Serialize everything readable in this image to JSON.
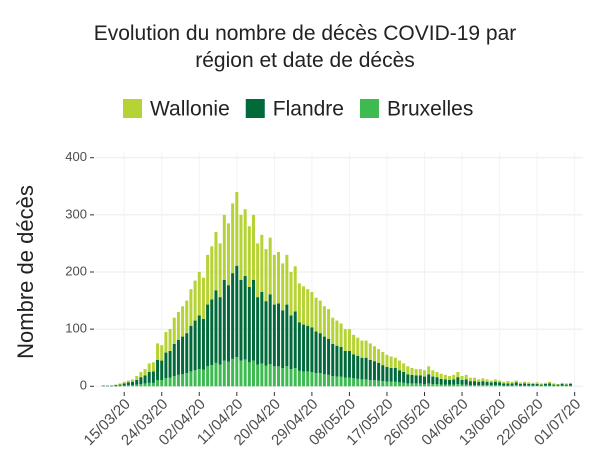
{
  "chart_data": {
    "type": "bar",
    "stacked": true,
    "title": "Evolution du nombre de décès COVID-19 par\nrégion et date de décès",
    "y_label": "Nombre de décès",
    "x": [
      "10/03/20",
      "11/03/20",
      "12/03/20",
      "13/03/20",
      "14/03/20",
      "15/03/20",
      "16/03/20",
      "17/03/20",
      "18/03/20",
      "19/03/20",
      "20/03/20",
      "21/03/20",
      "22/03/20",
      "23/03/20",
      "24/03/20",
      "25/03/20",
      "26/03/20",
      "27/03/20",
      "28/03/20",
      "29/03/20",
      "30/03/20",
      "31/03/20",
      "01/04/20",
      "02/04/20",
      "03/04/20",
      "04/04/20",
      "05/04/20",
      "06/04/20",
      "07/04/20",
      "08/04/20",
      "09/04/20",
      "10/04/20",
      "11/04/20",
      "12/04/20",
      "13/04/20",
      "14/04/20",
      "15/04/20",
      "16/04/20",
      "17/04/20",
      "18/04/20",
      "19/04/20",
      "20/04/20",
      "21/04/20",
      "22/04/20",
      "23/04/20",
      "24/04/20",
      "25/04/20",
      "26/04/20",
      "27/04/20",
      "28/04/20",
      "29/04/20",
      "30/04/20",
      "01/05/20",
      "02/05/20",
      "03/05/20",
      "04/05/20",
      "05/05/20",
      "06/05/20",
      "07/05/20",
      "08/05/20",
      "09/05/20",
      "10/05/20",
      "11/05/20",
      "12/05/20",
      "13/05/20",
      "14/05/20",
      "15/05/20",
      "16/05/20",
      "17/05/20",
      "18/05/20",
      "19/05/20",
      "20/05/20",
      "21/05/20",
      "22/05/20",
      "23/05/20",
      "24/05/20",
      "25/05/20",
      "26/05/20",
      "27/05/20",
      "28/05/20",
      "29/05/20",
      "30/05/20",
      "31/05/20",
      "01/06/20",
      "02/06/20",
      "03/06/20",
      "04/06/20",
      "05/06/20",
      "06/06/20",
      "07/06/20",
      "08/06/20",
      "09/06/20",
      "10/06/20",
      "11/06/20",
      "12/06/20",
      "13/06/20",
      "14/06/20",
      "15/06/20",
      "16/06/20",
      "17/06/20",
      "18/06/20",
      "19/06/20",
      "20/06/20",
      "21/06/20",
      "22/06/20",
      "23/06/20",
      "24/06/20",
      "25/06/20",
      "26/06/20",
      "27/06/20",
      "28/06/20",
      "29/06/20",
      "30/06/20"
    ],
    "series": [
      {
        "name": "Wallonie",
        "color": "#b5d334",
        "values": [
          1,
          0,
          1,
          1,
          2,
          3,
          3,
          4,
          7,
          9,
          11,
          15,
          16,
          29,
          27,
          36,
          38,
          46,
          49,
          53,
          57,
          64,
          70,
          76,
          72,
          87,
          93,
          102,
          94,
          114,
          108,
          122,
          129,
          114,
          117,
          106,
          114,
          94,
          100,
          91,
          99,
          87,
          90,
          82,
          87,
          76,
          79,
          68,
          67,
          64,
          62,
          59,
          57,
          53,
          52,
          46,
          44,
          41,
          38,
          38,
          34,
          32,
          30,
          30,
          29,
          26,
          24,
          23,
          21,
          20,
          18,
          17,
          15,
          14,
          12,
          11,
          11,
          11,
          14,
          11,
          9,
          9,
          8,
          7,
          8,
          9,
          7,
          8,
          6,
          6,
          4,
          5,
          4,
          3,
          4,
          3,
          3,
          4,
          3,
          3,
          3,
          3,
          3,
          2,
          3,
          2,
          2,
          3,
          2,
          1,
          2,
          2,
          2
        ]
      },
      {
        "name": "Flandre",
        "color": "#006a3a",
        "values": [
          1,
          1,
          1,
          2,
          2,
          4,
          5,
          6,
          8,
          12,
          14,
          19,
          20,
          35,
          34,
          45,
          47,
          56,
          61,
          66,
          70,
          80,
          87,
          94,
          89,
          108,
          115,
          127,
          118,
          141,
          134,
          150,
          160,
          141,
          146,
          132,
          141,
          118,
          125,
          113,
          122,
          108,
          110,
          101,
          108,
          94,
          99,
          85,
          82,
          80,
          78,
          73,
          70,
          66,
          63,
          56,
          54,
          52,
          47,
          47,
          42,
          40,
          38,
          38,
          35,
          33,
          31,
          28,
          26,
          24,
          24,
          21,
          19,
          16,
          15,
          14,
          14,
          13,
          16,
          13,
          12,
          10,
          9,
          8,
          9,
          12,
          8,
          9,
          7,
          7,
          6,
          7,
          6,
          5,
          6,
          5,
          4,
          4,
          4,
          5,
          3,
          4,
          3,
          3,
          3,
          2,
          3,
          4,
          2,
          2,
          3,
          2,
          3
        ]
      },
      {
        "name": "Bruxelles",
        "color": "#3dbb50",
        "values": [
          0,
          0,
          0,
          0,
          1,
          1,
          2,
          2,
          3,
          4,
          5,
          6,
          6,
          11,
          11,
          14,
          15,
          18,
          20,
          21,
          23,
          26,
          28,
          30,
          29,
          35,
          37,
          41,
          38,
          45,
          43,
          48,
          51,
          45,
          47,
          42,
          45,
          38,
          40,
          36,
          39,
          35,
          35,
          32,
          35,
          30,
          32,
          27,
          26,
          26,
          25,
          23,
          23,
          21,
          20,
          18,
          17,
          17,
          15,
          15,
          14,
          13,
          12,
          12,
          11,
          11,
          10,
          9,
          8,
          8,
          8,
          7,
          6,
          5,
          5,
          5,
          5,
          4,
          5,
          4,
          4,
          3,
          3,
          3,
          3,
          4,
          3,
          3,
          2,
          2,
          2,
          2,
          2,
          2,
          2,
          2,
          1,
          1,
          1,
          2,
          1,
          1,
          1,
          1,
          1,
          1,
          1,
          1,
          1,
          1,
          1,
          1,
          1
        ]
      }
    ],
    "xlim": [
      "08/03/20",
      "03/07/20"
    ],
    "xticks": [
      "15/03/20",
      "24/03/20",
      "02/04/20",
      "11/04/20",
      "20/04/20",
      "29/04/20",
      "08/05/20",
      "17/05/20",
      "26/05/20",
      "04/06/20",
      "13/06/20",
      "22/06/20",
      "01/07/20"
    ],
    "ylim": [
      -10,
      410
    ],
    "yticks": [
      0,
      100,
      200,
      300,
      400
    ],
    "grid": true,
    "legend": "top"
  }
}
